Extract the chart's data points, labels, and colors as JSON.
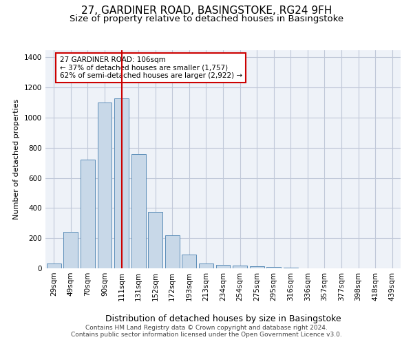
{
  "title": "27, GARDINER ROAD, BASINGSTOKE, RG24 9FH",
  "subtitle": "Size of property relative to detached houses in Basingstoke",
  "xlabel": "Distribution of detached houses by size in Basingstoke",
  "ylabel": "Number of detached properties",
  "footer_line1": "Contains HM Land Registry data © Crown copyright and database right 2024.",
  "footer_line2": "Contains public sector information licensed under the Open Government Licence v3.0.",
  "categories": [
    "29sqm",
    "49sqm",
    "70sqm",
    "90sqm",
    "111sqm",
    "131sqm",
    "152sqm",
    "172sqm",
    "193sqm",
    "213sqm",
    "234sqm",
    "254sqm",
    "275sqm",
    "295sqm",
    "316sqm",
    "336sqm",
    "357sqm",
    "377sqm",
    "398sqm",
    "418sqm",
    "439sqm"
  ],
  "values": [
    30,
    240,
    720,
    1100,
    1130,
    760,
    375,
    220,
    90,
    30,
    25,
    20,
    15,
    10,
    5,
    0,
    0,
    0,
    0,
    0,
    0
  ],
  "bar_color": "#c8d8e8",
  "bar_edge_color": "#5b8db8",
  "vline_bin": 4,
  "vline_color": "#cc0000",
  "annotation_title": "27 GARDINER ROAD: 106sqm",
  "annotation_line1": "← 37% of detached houses are smaller (1,757)",
  "annotation_line2": "62% of semi-detached houses are larger (2,922) →",
  "annotation_box_color": "#cc0000",
  "ylim": [
    0,
    1450
  ],
  "yticks": [
    0,
    200,
    400,
    600,
    800,
    1000,
    1200,
    1400
  ],
  "grid_color": "#c0c8d8",
  "bg_color": "#eef2f8",
  "title_fontsize": 11,
  "subtitle_fontsize": 9.5,
  "xlabel_fontsize": 9,
  "ylabel_fontsize": 8,
  "tick_fontsize": 7.5,
  "footer_fontsize": 6.5
}
